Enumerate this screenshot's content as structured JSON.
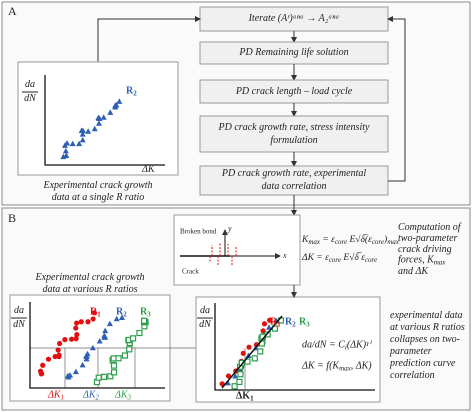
{
  "panel_a": {
    "label": "A",
    "flow": [
      [
        "Iterate (Aʳ)ᵃⁿᵃ → A₂ᵃⁿᵃ"
      ],
      [
        "PD Remaining life solution"
      ],
      [
        "PD crack length – load cycle"
      ],
      [
        "PD crack growth rate, stress intensity",
        "formulation"
      ],
      [
        "PD crack growth rate, experimental",
        "data correlation"
      ]
    ],
    "chart": {
      "y_label": [
        "da",
        "dN"
      ],
      "x_label": "ΔK",
      "series_label": [
        "R",
        "2"
      ]
    },
    "caption": [
      "Experimental crack growth",
      "data at a single R ratio"
    ]
  },
  "panel_b": {
    "label": "B",
    "inset": {
      "broken_bond": "Broken bond",
      "y": "y",
      "x": "x",
      "crack": "Crack"
    },
    "equations": [
      [
        "K",
        "max",
        " = ε",
        "core",
        " E√δ̅(ε",
        "core",
        ")",
        "max"
      ],
      [
        "ΔK = ε",
        "core",
        " E√δ̅ ε",
        "core"
      ]
    ],
    "computation": [
      "Computation of",
      "two-parameter",
      "crack driving",
      [
        "forces, K",
        "max"
      ],
      "and ΔK"
    ],
    "left_caption": [
      "Experimental crack growth",
      "data at various R ratios"
    ],
    "left_chart": {
      "y_label": [
        "da",
        "dN"
      ],
      "series_labels": [
        [
          "R",
          "1"
        ],
        [
          "R",
          "2"
        ],
        [
          "R",
          "3"
        ]
      ],
      "x_labels": [
        [
          "ΔK",
          "1"
        ],
        [
          "ΔK",
          "2"
        ],
        [
          "ΔK",
          "3"
        ]
      ]
    },
    "right_chart": {
      "y_label": [
        "da",
        "dN"
      ],
      "series_labels": [
        [
          "R",
          "1"
        ],
        [
          "R",
          "2"
        ],
        [
          "R",
          "3"
        ]
      ],
      "x_label": [
        "ΔK",
        "1"
      ],
      "equations": [
        [
          "da/dN = C",
          "i",
          "(ΔK)ˠⁱ"
        ],
        [
          "ΔK = f(K",
          "max",
          ", ΔK)"
        ]
      ]
    },
    "conclusion": [
      "experimental data",
      "at various R ratios",
      "collapses on two-",
      "parameter",
      "prediction curve",
      "correlation"
    ]
  }
}
